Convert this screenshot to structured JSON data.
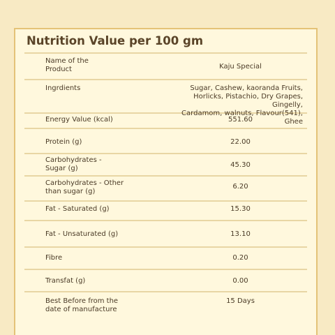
{
  "title": "Nutrition Value per 100 gm",
  "rows": [
    {
      "label": "Name of the\nProduct",
      "value": "Kaju Special"
    },
    {
      "label": "Ingrdients",
      "value": "Sugar, Cashew, kaoranda Fruits,\nHorlicks, Pistachio, Dry Grapes, Gingelly,\nCardamom, walnuts, Flavour(541), Ghee"
    },
    {
      "label": "Energy Value (kcal)",
      "value": "551.60"
    },
    {
      "label": "Protein (g)",
      "value": "22.00"
    },
    {
      "label": "Carbohydrates -\nSugar (g)",
      "value": "45.30"
    },
    {
      "label": "Carbohydrates - Other\nthan sugar (g)",
      "value": "6.20"
    },
    {
      "label": "Fat - Saturated (g)",
      "value": "15.30"
    },
    {
      "label": "Fat - Unsaturated (g)",
      "value": "13.10"
    },
    {
      "label": "Fibre",
      "value": "0.20"
    },
    {
      "label": "Transfat (g)",
      "value": "0.00"
    },
    {
      "label": "Best Before from the\ndate of manufacture",
      "value": "15 Days"
    }
  ]
}
